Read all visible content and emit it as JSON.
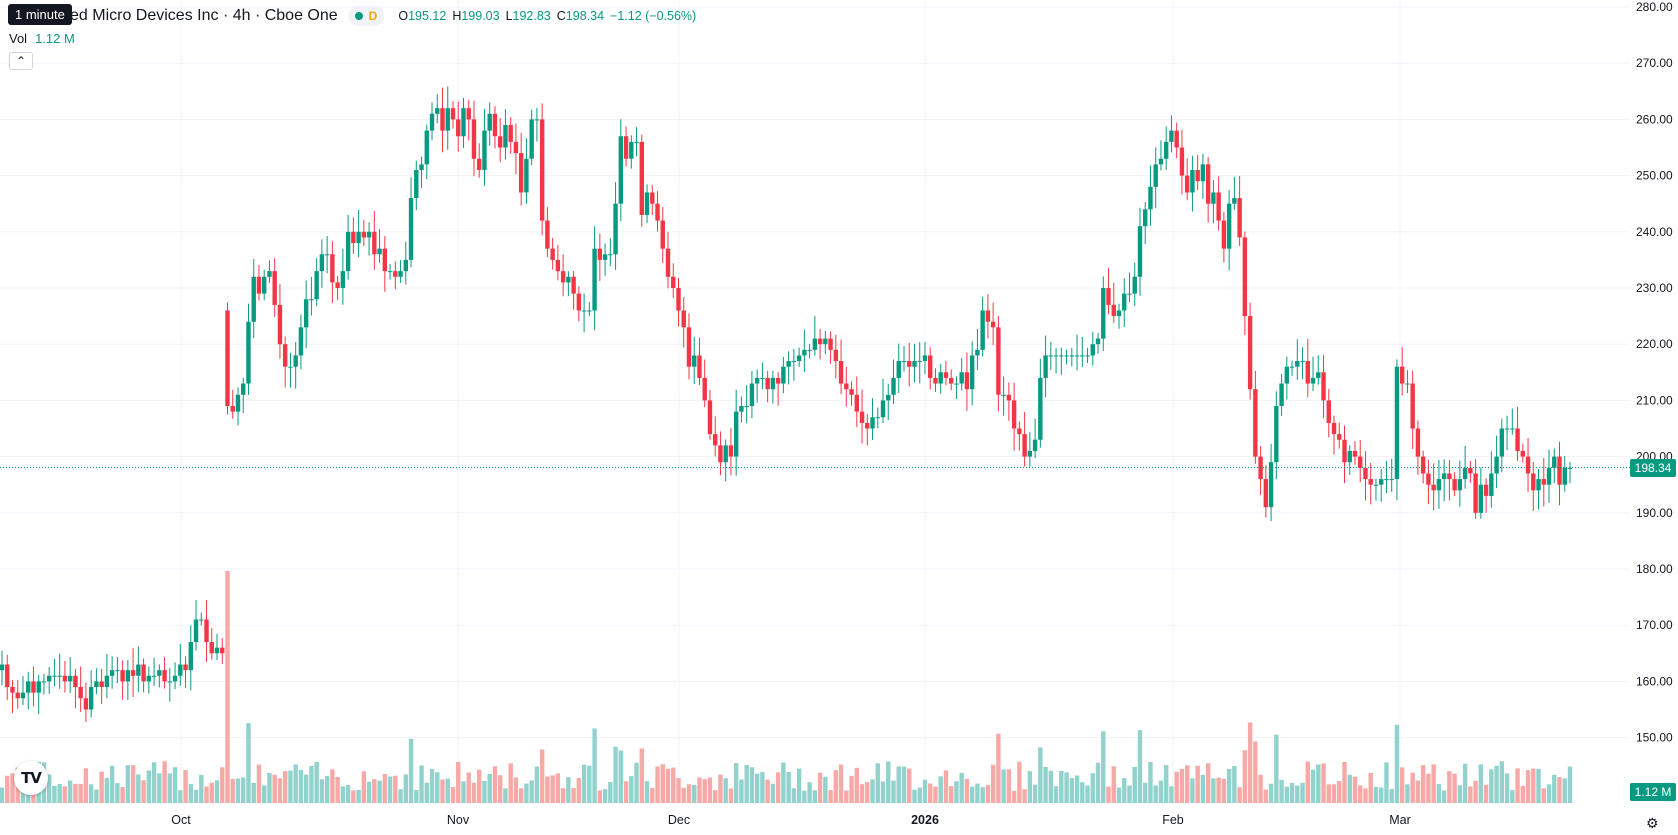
{
  "tooltip": "1 minute",
  "header": {
    "title": "ced Micro Devices Inc · 4h · Cboe One",
    "delay_badge": "D",
    "open_label": "O",
    "open": "195.12",
    "high_label": "H",
    "high": "199.03",
    "low_label": "L",
    "low": "192.83",
    "close_label": "C",
    "close": "198.34",
    "change": "−1.12 (−0.56%)"
  },
  "volume_legend": {
    "label": "Vol",
    "value": "1.12 M"
  },
  "collapse_icon": "chevron-up-icon",
  "logo_text": "TV",
  "settings_icon": "gear-icon",
  "colors": {
    "up": "#089981",
    "down": "#f23645",
    "vol_up": "#92d2cc",
    "vol_down": "#f7a9a7",
    "grid": "#f0f3fa"
  },
  "chart_data": {
    "type": "candlestick",
    "price_axis": {
      "min": 140,
      "max": 280,
      "ticks": [
        "280.00",
        "270.00",
        "260.00",
        "250.00",
        "240.00",
        "230.00",
        "220.00",
        "210.00",
        "200.00",
        "190.00",
        "180.00",
        "170.00",
        "160.00",
        "150.00"
      ]
    },
    "last_price_label": "198.34",
    "last_volume_label": "1.12 M",
    "time_labels": [
      "Oct",
      "Nov",
      "Dec",
      "2026",
      "Feb",
      "Mar"
    ],
    "grid": true,
    "ohlc_close_series": [
      163,
      159,
      158,
      157,
      158,
      160,
      158,
      160,
      160,
      161,
      161,
      161,
      160,
      161,
      159,
      157,
      155,
      159,
      160,
      159,
      161,
      162,
      162,
      160,
      162,
      161,
      163,
      160,
      161,
      161,
      162,
      160,
      160,
      161,
      163,
      162,
      167,
      171,
      171,
      167,
      165,
      166,
      165,
      209,
      208,
      211,
      213,
      224,
      232,
      229,
      232,
      233,
      227,
      220,
      216,
      216,
      218,
      223,
      228,
      228,
      233,
      236,
      236,
      231,
      230,
      233,
      240,
      238,
      240,
      239,
      240,
      236,
      237,
      233,
      233,
      232,
      233,
      235,
      246,
      251,
      252,
      258,
      261,
      262,
      258,
      262,
      260,
      257,
      262,
      260,
      253,
      251,
      258,
      261,
      257,
      255,
      259,
      256,
      254,
      247,
      253,
      260,
      260,
      242,
      237,
      235,
      233,
      231,
      232,
      229,
      226,
      226,
      226,
      237,
      235,
      236,
      236,
      245,
      257,
      253,
      256,
      256,
      243,
      247,
      245,
      242,
      237,
      232,
      230,
      226,
      223,
      216,
      218,
      214,
      210,
      204,
      202,
      199,
      202,
      200,
      208,
      209,
      209,
      213,
      214,
      214,
      212,
      214,
      213,
      216,
      217,
      217,
      218,
      219,
      219,
      221,
      220,
      221,
      219,
      217,
      213,
      212,
      211,
      208,
      206,
      205,
      207,
      207,
      210,
      211,
      214,
      217,
      217,
      216,
      217,
      217,
      218,
      214,
      213,
      215,
      214,
      213,
      213,
      215,
      212,
      218,
      219,
      226,
      224,
      223,
      211,
      211,
      210,
      205,
      204,
      200,
      201,
      203,
      214,
      218,
      218,
      218,
      218,
      218,
      218,
      218,
      218,
      218,
      220,
      221,
      230,
      227,
      225,
      226,
      229,
      229,
      232,
      241,
      244,
      248,
      252,
      253,
      256,
      258,
      255,
      250,
      247,
      251,
      249,
      252,
      245,
      247,
      242,
      237,
      245,
      246,
      239,
      225,
      212,
      200,
      196,
      191,
      199,
      209,
      213,
      216,
      216,
      217,
      217,
      213,
      214,
      215,
      210,
      206,
      204,
      203,
      199,
      201,
      200,
      198,
      196,
      195,
      195,
      196,
      196,
      196,
      216,
      213,
      213,
      205,
      200,
      197,
      195,
      194,
      196,
      197,
      196,
      194,
      196,
      198,
      197,
      190,
      195,
      193,
      197,
      200,
      205,
      205,
      205,
      201,
      200,
      197,
      194,
      196,
      195,
      198,
      200,
      195,
      198,
      198
    ]
  }
}
